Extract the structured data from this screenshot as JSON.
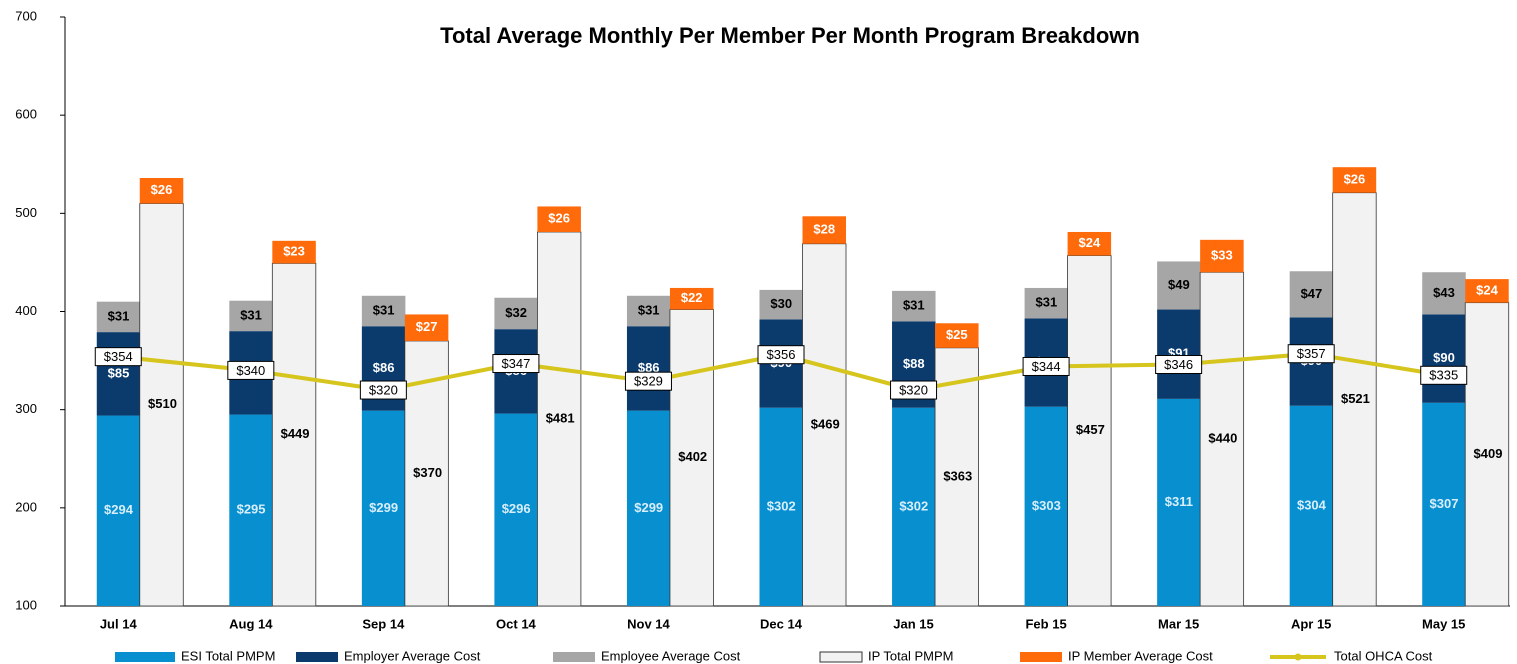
{
  "chart_data": {
    "type": "bar",
    "title": "Total Average Monthly Per Member Per Month Program Breakdown",
    "categories": [
      "Jul 14",
      "Aug 14",
      "Sep 14",
      "Oct 14",
      "Nov 14",
      "Dec 14",
      "Jan 15",
      "Feb 15",
      "Mar 15",
      "Apr 15",
      "May 15"
    ],
    "ylim": [
      100,
      700
    ],
    "yticks": [
      100,
      200,
      300,
      400,
      500,
      600,
      700
    ],
    "series": [
      {
        "name": "ESI Total PMPM",
        "color": "#078fd0",
        "values": [
          294,
          295,
          299,
          296,
          299,
          302,
          302,
          303,
          311,
          304,
          307
        ],
        "value_labels": [
          "$294",
          "$295",
          "$299",
          "$296",
          "$299",
          "$302",
          "$302",
          "$303",
          "$311",
          "$304",
          "$307"
        ]
      },
      {
        "name": "Employer Average Cost",
        "color": "#0b3a6c",
        "values": [
          85,
          85,
          86,
          86,
          86,
          90,
          88,
          90,
          91,
          90,
          90
        ],
        "value_labels": [
          "$85",
          "$85",
          "$86",
          "$86",
          "$86",
          "$90",
          "$88",
          "$90",
          "$91",
          "$90",
          "$90"
        ]
      },
      {
        "name": "Employee Average Cost",
        "color": "#a6a6a6",
        "values": [
          31,
          31,
          31,
          32,
          31,
          30,
          31,
          31,
          49,
          47,
          43
        ],
        "value_labels": [
          "$31",
          "$31",
          "$31",
          "$32",
          "$31",
          "$30",
          "$31",
          "$31",
          "$49",
          "$47",
          "$43"
        ]
      },
      {
        "name": "IP Total PMPM",
        "color": "#f2f2f2",
        "values": [
          510,
          449,
          370,
          481,
          402,
          469,
          363,
          457,
          440,
          521,
          409
        ],
        "value_labels": [
          "$510",
          "$449",
          "$370",
          "$481",
          "$402",
          "$469",
          "$363",
          "$457",
          "$440",
          "$521",
          "$409"
        ]
      },
      {
        "name": "IP Member Average Cost",
        "color": "#ff6a0a",
        "values": [
          26,
          23,
          27,
          26,
          22,
          28,
          25,
          24,
          33,
          26,
          24
        ],
        "value_labels": [
          "$26",
          "$23",
          "$27",
          "$26",
          "$22",
          "$28",
          "$25",
          "$24",
          "$33",
          "$26",
          "$24"
        ]
      },
      {
        "name": "Total OHCA Cost",
        "type": "line",
        "color": "#d6c51c",
        "values": [
          354,
          340,
          320,
          347,
          329,
          356,
          320,
          344,
          346,
          357,
          335
        ],
        "value_labels": [
          "$354",
          "$340",
          "$320",
          "$347",
          "$329",
          "$356",
          "$320",
          "$344",
          "$346",
          "$357",
          "$335"
        ]
      }
    ]
  }
}
